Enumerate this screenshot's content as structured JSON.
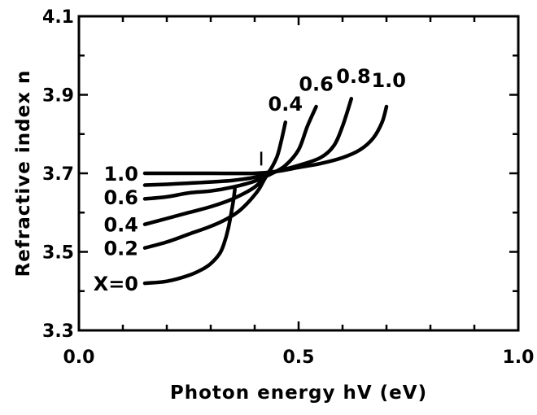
{
  "chart_data": {
    "type": "line",
    "title": "",
    "xlabel": "Photon energy hV (eV)",
    "ylabel": "Refractive index n",
    "xlim": [
      0.0,
      1.0
    ],
    "ylim": [
      3.3,
      4.1
    ],
    "x_ticks": [
      0.0,
      0.5,
      1.0
    ],
    "x_tick_labels": [
      "0.0",
      "0.5",
      "1.0"
    ],
    "x_minor_ticks": [
      0.1,
      0.2,
      0.3,
      0.4,
      0.6,
      0.7,
      0.8,
      0.9
    ],
    "y_ticks": [
      3.3,
      3.5,
      3.7,
      3.9,
      4.1
    ],
    "y_tick_labels": [
      "3.3",
      "3.5",
      "3.7",
      "3.9",
      "4.1"
    ],
    "y_minor_ticks": [
      3.4,
      3.6,
      3.8,
      4.0
    ],
    "grid": false,
    "legend": "none",
    "series": [
      {
        "name": "X=0",
        "label": "X=0",
        "label_side": "left",
        "x": [
          0.15,
          0.2,
          0.25,
          0.28,
          0.3,
          0.32,
          0.33,
          0.34,
          0.35,
          0.355
        ],
        "y": [
          3.42,
          3.425,
          3.44,
          3.455,
          3.47,
          3.495,
          3.52,
          3.56,
          3.62,
          3.66
        ]
      },
      {
        "name": "0.2",
        "label": "0.2",
        "label_side": "left",
        "x": [
          0.15,
          0.2,
          0.25,
          0.3,
          0.33,
          0.36,
          0.38,
          0.4,
          0.41,
          0.42,
          0.43
        ],
        "y": [
          3.51,
          3.525,
          3.545,
          3.565,
          3.58,
          3.6,
          3.62,
          3.645,
          3.66,
          3.68,
          3.7
        ]
      },
      {
        "name": "0.4",
        "label": "0.4",
        "label_side": "left",
        "x": [
          0.15,
          0.2,
          0.25,
          0.3,
          0.35,
          0.4,
          0.43,
          0.45,
          0.46,
          0.47
        ],
        "y": [
          3.57,
          3.585,
          3.6,
          3.615,
          3.635,
          3.665,
          3.7,
          3.74,
          3.78,
          3.83
        ]
      },
      {
        "name": "0.6",
        "label": "0.6",
        "label_side": "left",
        "x": [
          0.15,
          0.2,
          0.25,
          0.3,
          0.35,
          0.4,
          0.44,
          0.47,
          0.5,
          0.52,
          0.54
        ],
        "y": [
          3.635,
          3.64,
          3.65,
          3.655,
          3.665,
          3.68,
          3.7,
          3.72,
          3.76,
          3.82,
          3.87
        ]
      },
      {
        "name": "0.8",
        "label": "0.8",
        "label_side": "left",
        "x": [
          0.15,
          0.2,
          0.25,
          0.3,
          0.35,
          0.4,
          0.45,
          0.5,
          0.55,
          0.58,
          0.6,
          0.62
        ],
        "y": [
          3.67,
          3.672,
          3.675,
          3.678,
          3.682,
          3.69,
          3.705,
          3.72,
          3.74,
          3.77,
          3.82,
          3.89
        ]
      },
      {
        "name": "1.0",
        "label": "1.0",
        "label_side": "left",
        "x": [
          0.15,
          0.2,
          0.3,
          0.4,
          0.45,
          0.5,
          0.55,
          0.6,
          0.64,
          0.67,
          0.69,
          0.7
        ],
        "y": [
          3.7,
          3.7,
          3.7,
          3.7,
          3.705,
          3.715,
          3.725,
          3.74,
          3.76,
          3.79,
          3.83,
          3.87
        ]
      }
    ],
    "top_labels": [
      {
        "text": "0.4",
        "x": 0.47,
        "y": 3.86
      },
      {
        "text": "0.6",
        "x": 0.54,
        "y": 3.91
      },
      {
        "text": "0.8",
        "x": 0.625,
        "y": 3.93
      },
      {
        "text": "1.0",
        "x": 0.705,
        "y": 3.92
      }
    ],
    "left_labels": [
      {
        "text": "1.0",
        "y": 3.7
      },
      {
        "text": "0.6",
        "y": 3.64
      },
      {
        "text": "0.4",
        "y": 3.57
      },
      {
        "text": "0.2",
        "y": 3.51
      },
      {
        "text": "X=0",
        "y": 3.42
      }
    ]
  }
}
